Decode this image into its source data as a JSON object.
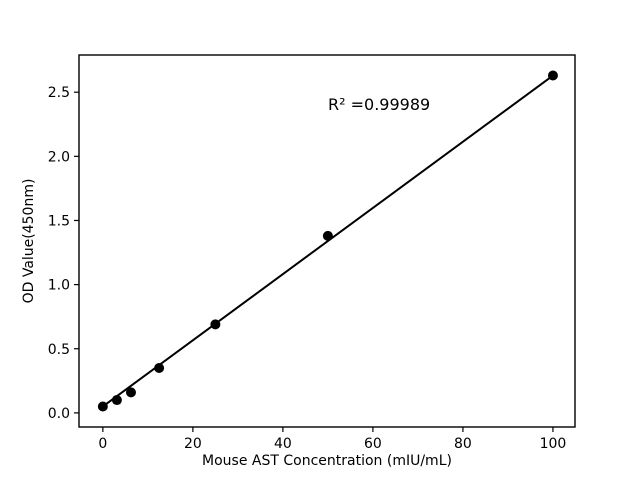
{
  "figure": {
    "background": "#ffffff",
    "foreground": "#000000"
  },
  "chart_data": {
    "type": "scatter",
    "title": "",
    "xlabel": "Mouse AST Concentration (mIU/mL)",
    "ylabel": "OD Value(450nm)",
    "x": [
      0,
      3.125,
      6.25,
      12.5,
      25,
      50,
      100
    ],
    "y": [
      0.05,
      0.1,
      0.16,
      0.35,
      0.69,
      1.38,
      2.63
    ],
    "fit_line": {
      "x1": 0,
      "y1": 0.05,
      "x2": 100,
      "y2": 2.63
    },
    "annotation": {
      "text": "R² =0.99989",
      "r_squared_value": 0.99989
    },
    "xlim": [
      -5.3,
      104.9
    ],
    "ylim": [
      -0.11,
      2.79
    ],
    "xticks": [
      0,
      20,
      40,
      60,
      80,
      100
    ],
    "yticks": [
      0.0,
      0.5,
      1.0,
      1.5,
      2.0,
      2.5
    ],
    "grid": false,
    "legend_position": "none",
    "marker_color": "#000000",
    "line_color": "#000000",
    "axis_color": "#000000"
  }
}
